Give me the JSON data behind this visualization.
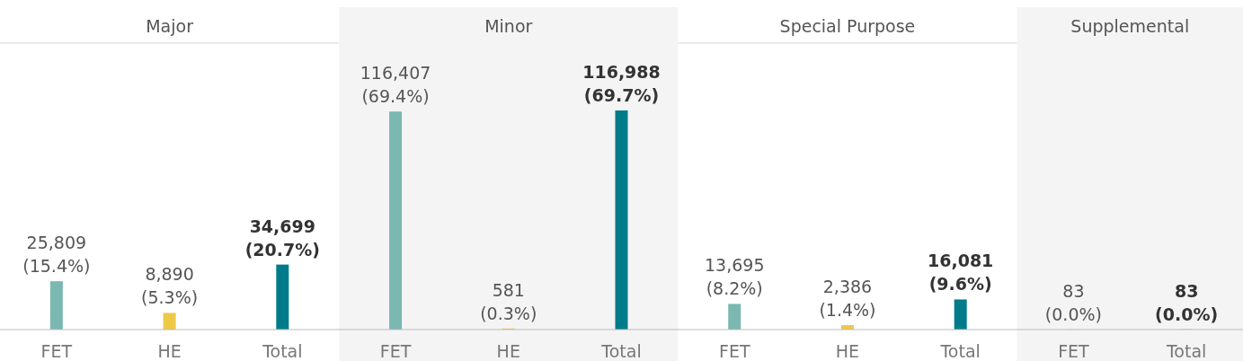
{
  "chart_data": {
    "type": "bar",
    "categories": [
      "Major",
      "Minor",
      "Special Purpose",
      "Supplemental"
    ],
    "series": [
      {
        "name": "FET",
        "color": "#7ab8b1",
        "values": [
          25809,
          116407,
          13695,
          83
        ],
        "value_labels": [
          "25,809\n(15.4%)",
          "116,407\n(69.4%)",
          "13,695\n(8.2%)",
          "83\n(0.0%)"
        ]
      },
      {
        "name": "HE",
        "color": "#edc948",
        "values": [
          8890,
          581,
          2386,
          null
        ],
        "value_labels": [
          "8,890\n(5.3%)",
          "581\n(0.3%)",
          "2,386\n(1.4%)",
          null
        ]
      },
      {
        "name": "Total",
        "color": "#007b8a",
        "values": [
          34699,
          116988,
          16081,
          83
        ],
        "value_labels": [
          "34,699\n(20.7%)",
          "116,988\n(69.7%)",
          "16,081\n(9.6%)",
          "83\n(0.0%)"
        ]
      }
    ]
  }
}
